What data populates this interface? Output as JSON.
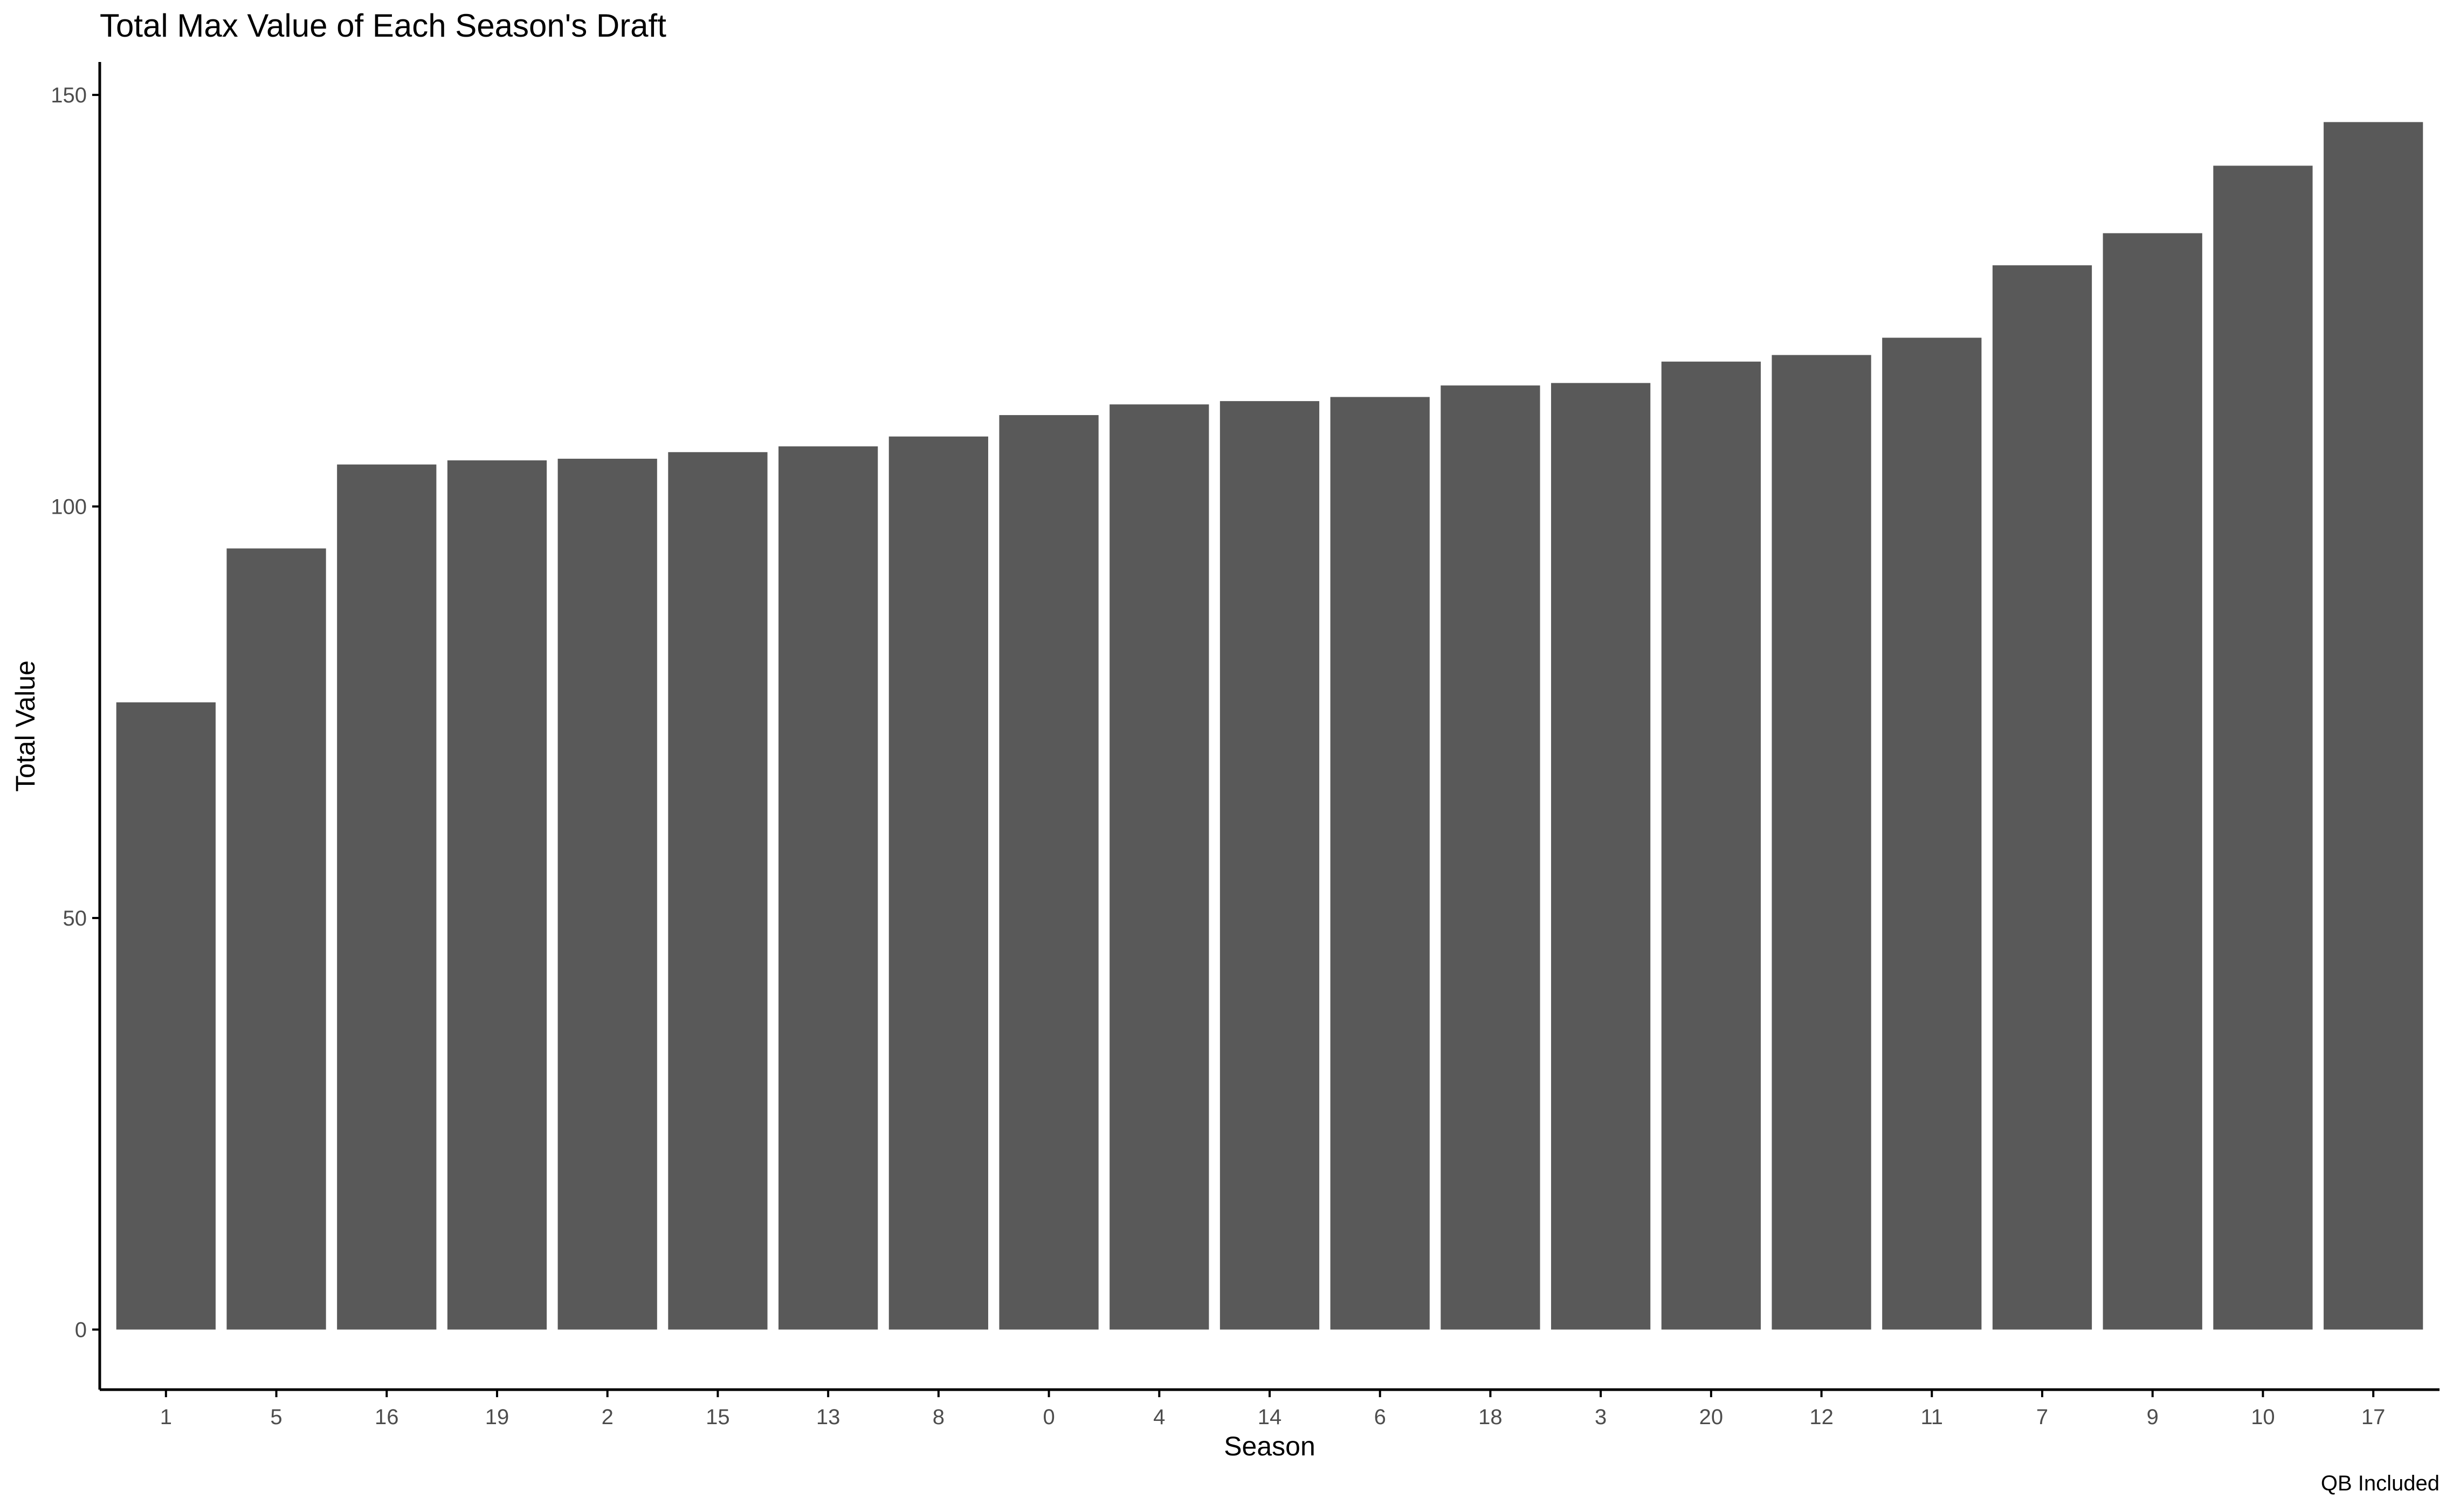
{
  "chart_data": {
    "type": "bar",
    "title": "Total Max Value of Each Season's Draft",
    "xlabel": "Season",
    "ylabel": "Total Value",
    "caption": "QB Included",
    "categories": [
      "1",
      "5",
      "16",
      "19",
      "2",
      "15",
      "13",
      "8",
      "0",
      "4",
      "14",
      "6",
      "18",
      "3",
      "20",
      "12",
      "11",
      "7",
      "9",
      "10",
      "17"
    ],
    "values": [
      76.2,
      94.9,
      105.1,
      105.6,
      105.8,
      106.6,
      107.3,
      108.5,
      111.1,
      112.4,
      112.8,
      113.3,
      114.7,
      115.0,
      117.6,
      118.4,
      120.5,
      129.3,
      133.2,
      141.4,
      146.7
    ],
    "y_ticks": [
      0,
      50,
      100,
      150
    ],
    "ylim": [
      -7.3,
      154
    ],
    "bar_color": "#595959",
    "axis_color": "#000000",
    "tick_label_color": "#4d4d4d",
    "grid": false,
    "legend": "none"
  }
}
